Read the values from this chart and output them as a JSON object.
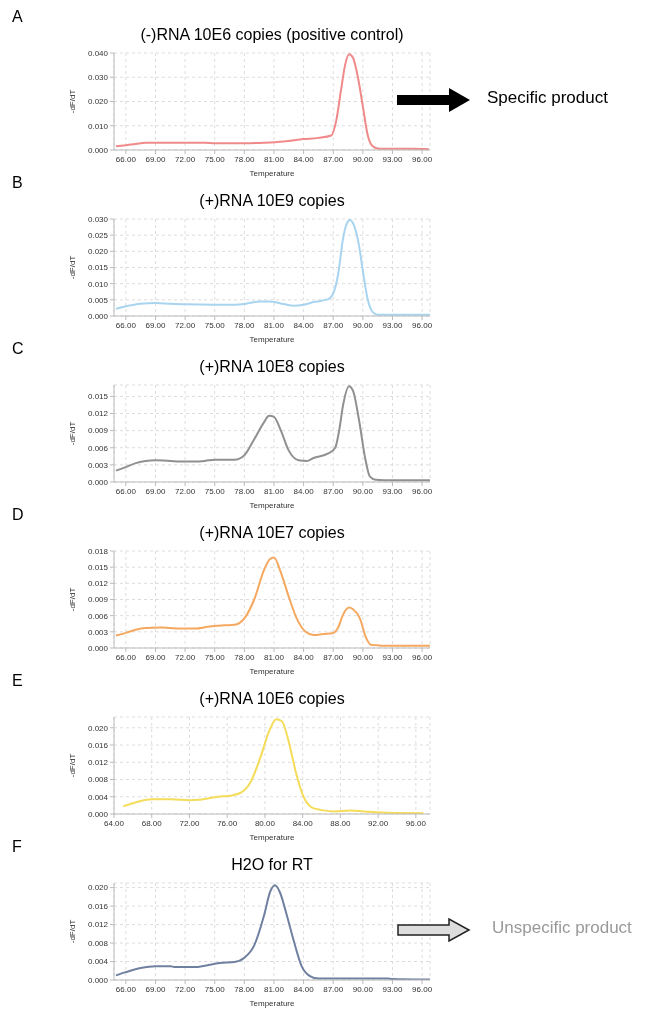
{
  "chart_data": [
    {
      "type": "line",
      "title": "(-)RNA 10E6 copies (positive control)",
      "xlabel": "Temperature",
      "ylabel": "-dF/dT",
      "annotations": [
        "A",
        "Specific product"
      ],
      "grid": true,
      "xlim": [
        64.8,
        96.8
      ],
      "xticks": [
        {
          "value": 66,
          "label": "66.00"
        },
        {
          "value": 69,
          "label": "69.00"
        },
        {
          "value": 72,
          "label": "72.00"
        },
        {
          "value": 75,
          "label": "75.00"
        },
        {
          "value": 78,
          "label": "78.00"
        },
        {
          "value": 81,
          "label": "81.00"
        },
        {
          "value": 84,
          "label": "84.00"
        },
        {
          "value": 87,
          "label": "87.00"
        },
        {
          "value": 90,
          "label": "90.00"
        },
        {
          "value": 93,
          "label": "93.00"
        },
        {
          "value": 96,
          "label": "96.00"
        }
      ],
      "ylim": [
        0,
        0.04
      ],
      "yticks": [
        {
          "value": 0,
          "label": "0.000"
        },
        {
          "value": 0.01,
          "label": "0.010"
        },
        {
          "value": 0.02,
          "label": "0.020"
        },
        {
          "value": 0.03,
          "label": "0.030"
        },
        {
          "value": 0.04,
          "label": "0.040"
        }
      ],
      "series": [
        {
          "color": "#f08a8a",
          "x": [
            65,
            66,
            67,
            68,
            70,
            72,
            74,
            75,
            78,
            80,
            82,
            84,
            85.5,
            86.8,
            87.3,
            87.8,
            88.2,
            88.6,
            89,
            89.5,
            90,
            90.5,
            91,
            91.5,
            92,
            95,
            96.7
          ],
          "values": [
            0.0015,
            0.002,
            0.0025,
            0.003,
            0.003,
            0.003,
            0.003,
            0.0028,
            0.0028,
            0.003,
            0.0035,
            0.0045,
            0.005,
            0.006,
            0.012,
            0.025,
            0.035,
            0.0395,
            0.038,
            0.03,
            0.018,
            0.006,
            0.0015,
            0.0006,
            0.0005,
            0.0005,
            0.0003
          ]
        }
      ]
    },
    {
      "type": "line",
      "title": "(+)RNA 10E9 copies",
      "xlabel": "Temperature",
      "ylabel": "-dF/dT",
      "annotations": [
        "B"
      ],
      "grid": true,
      "xlim": [
        64.8,
        96.8
      ],
      "xticks": [
        {
          "value": 66,
          "label": "66.00"
        },
        {
          "value": 69,
          "label": "69.00"
        },
        {
          "value": 72,
          "label": "72.00"
        },
        {
          "value": 75,
          "label": "75.00"
        },
        {
          "value": 78,
          "label": "78.00"
        },
        {
          "value": 81,
          "label": "81.00"
        },
        {
          "value": 84,
          "label": "84.00"
        },
        {
          "value": 87,
          "label": "87.00"
        },
        {
          "value": 90,
          "label": "90.00"
        },
        {
          "value": 93,
          "label": "93.00"
        },
        {
          "value": 96,
          "label": "96.00"
        }
      ],
      "ylim": [
        0,
        0.03
      ],
      "yticks": [
        {
          "value": 0,
          "label": "0.000"
        },
        {
          "value": 0.005,
          "label": "0.005"
        },
        {
          "value": 0.01,
          "label": "0.010"
        },
        {
          "value": 0.015,
          "label": "0.015"
        },
        {
          "value": 0.02,
          "label": "0.020"
        },
        {
          "value": 0.025,
          "label": "0.025"
        },
        {
          "value": 0.03,
          "label": "0.030"
        }
      ],
      "series": [
        {
          "color": "#a8d4f0",
          "x": [
            65,
            66,
            67.5,
            69,
            70.5,
            72,
            75,
            77,
            78,
            79.5,
            80.5,
            82,
            83,
            84,
            85,
            86.5,
            87,
            87.5,
            88,
            88.3,
            88.7,
            89.1,
            89.6,
            90,
            90.5,
            91,
            91.5,
            96.8
          ],
          "values": [
            0.0022,
            0.003,
            0.0038,
            0.004,
            0.0038,
            0.0036,
            0.0035,
            0.0035,
            0.0037,
            0.0045,
            0.0045,
            0.0037,
            0.0032,
            0.0035,
            0.0043,
            0.0052,
            0.007,
            0.013,
            0.024,
            0.028,
            0.0297,
            0.028,
            0.022,
            0.014,
            0.005,
            0.0012,
            0.0004,
            0.0004
          ]
        }
      ]
    },
    {
      "type": "line",
      "title": "(+)RNA 10E8 copies",
      "xlabel": "Temperature",
      "ylabel": "-dF/dT",
      "annotations": [
        "C"
      ],
      "grid": true,
      "xlim": [
        64.8,
        96.8
      ],
      "xticks": [
        {
          "value": 66,
          "label": "66.00"
        },
        {
          "value": 69,
          "label": "69.00"
        },
        {
          "value": 72,
          "label": "72.00"
        },
        {
          "value": 75,
          "label": "75.00"
        },
        {
          "value": 78,
          "label": "78.00"
        },
        {
          "value": 81,
          "label": "81.00"
        },
        {
          "value": 84,
          "label": "84.00"
        },
        {
          "value": 87,
          "label": "87.00"
        },
        {
          "value": 90,
          "label": "90.00"
        },
        {
          "value": 93,
          "label": "93.00"
        },
        {
          "value": 96,
          "label": "96.00"
        }
      ],
      "ylim": [
        0,
        0.017
      ],
      "yticks": [
        {
          "value": 0,
          "label": "0.000"
        },
        {
          "value": 0.003,
          "label": "0.003"
        },
        {
          "value": 0.006,
          "label": "0.006"
        },
        {
          "value": 0.009,
          "label": "0.009"
        },
        {
          "value": 0.012,
          "label": "0.012"
        },
        {
          "value": 0.015,
          "label": "0.015"
        }
      ],
      "series": [
        {
          "color": "#909090",
          "x": [
            65,
            66,
            67,
            68,
            69,
            70.5,
            71.5,
            73,
            74,
            75,
            76,
            77,
            78,
            79,
            80,
            80.5,
            81,
            81.7,
            82.5,
            83.5,
            84.3,
            85,
            86.5,
            87.2,
            87.6,
            88,
            88.6,
            89,
            89.6,
            90.2,
            90.7,
            91.3,
            93,
            96.8
          ],
          "values": [
            0.002,
            0.0026,
            0.0033,
            0.0037,
            0.0038,
            0.0037,
            0.0036,
            0.0036,
            0.0037,
            0.0039,
            0.0039,
            0.0039,
            0.0047,
            0.0075,
            0.0105,
            0.0116,
            0.0114,
            0.009,
            0.0055,
            0.0038,
            0.0037,
            0.0042,
            0.005,
            0.006,
            0.009,
            0.0135,
            0.0168,
            0.016,
            0.011,
            0.0045,
            0.001,
            0.0004,
            0.0003,
            0.0003
          ]
        }
      ]
    },
    {
      "type": "line",
      "title": "(+)RNA 10E7 copies",
      "xlabel": "Temperature",
      "ylabel": "-dF/dT",
      "annotations": [
        "D"
      ],
      "grid": true,
      "xlim": [
        64.8,
        96.8
      ],
      "xticks": [
        {
          "value": 66,
          "label": "66.00"
        },
        {
          "value": 69,
          "label": "69.00"
        },
        {
          "value": 72,
          "label": "72.00"
        },
        {
          "value": 75,
          "label": "75.00"
        },
        {
          "value": 78,
          "label": "78.00"
        },
        {
          "value": 81,
          "label": "81.00"
        },
        {
          "value": 84,
          "label": "84.00"
        },
        {
          "value": 87,
          "label": "87.00"
        },
        {
          "value": 90,
          "label": "90.00"
        },
        {
          "value": 93,
          "label": "93.00"
        },
        {
          "value": 96,
          "label": "96.00"
        }
      ],
      "ylim": [
        0,
        0.018
      ],
      "yticks": [
        {
          "value": 0,
          "label": "0.000"
        },
        {
          "value": 0.003,
          "label": "0.003"
        },
        {
          "value": 0.006,
          "label": "0.006"
        },
        {
          "value": 0.009,
          "label": "0.009"
        },
        {
          "value": 0.012,
          "label": "0.012"
        },
        {
          "value": 0.015,
          "label": "0.015"
        },
        {
          "value": 0.018,
          "label": "0.018"
        }
      ],
      "series": [
        {
          "color": "#f5a860",
          "x": [
            65,
            66,
            67,
            68,
            69.5,
            70.5,
            72,
            73,
            74.5,
            76,
            77,
            78,
            79,
            80,
            80.6,
            81,
            81.7,
            82.5,
            83.3,
            84.2,
            85,
            86,
            87,
            87.5,
            88,
            88.6,
            89,
            89.7,
            90.3,
            90.8,
            91.5,
            92,
            96.8
          ],
          "values": [
            0.0023,
            0.0028,
            0.0034,
            0.0037,
            0.0038,
            0.0037,
            0.0036,
            0.0036,
            0.004,
            0.0042,
            0.0043,
            0.0055,
            0.009,
            0.0145,
            0.0165,
            0.0168,
            0.014,
            0.0095,
            0.0055,
            0.003,
            0.0024,
            0.0026,
            0.0028,
            0.0038,
            0.0062,
            0.0075,
            0.0072,
            0.0055,
            0.002,
            0.0006,
            0.0005,
            0.0004,
            0.0004
          ]
        }
      ]
    },
    {
      "type": "line",
      "title": "(+)RNA 10E6 copies",
      "xlabel": "Temperature",
      "ylabel": "-dF/dT",
      "annotations": [
        "E"
      ],
      "grid": true,
      "xlim": [
        64,
        97.5
      ],
      "xticks": [
        {
          "value": 64,
          "label": "64.00"
        },
        {
          "value": 68,
          "label": "68.00"
        },
        {
          "value": 72,
          "label": "72.00"
        },
        {
          "value": 76,
          "label": "76.00"
        },
        {
          "value": 80,
          "label": "80.00"
        },
        {
          "value": 84,
          "label": "84.00"
        },
        {
          "value": 88,
          "label": "88.00"
        },
        {
          "value": 92,
          "label": "92.00"
        },
        {
          "value": 96,
          "label": "96.00"
        }
      ],
      "ylim": [
        0,
        0.0225
      ],
      "yticks": [
        {
          "value": 0,
          "label": "0.000"
        },
        {
          "value": 0.004,
          "label": "0.004"
        },
        {
          "value": 0.008,
          "label": "0.008"
        },
        {
          "value": 0.012,
          "label": "0.012"
        },
        {
          "value": 0.016,
          "label": "0.016"
        },
        {
          "value": 0.02,
          "label": "0.020"
        }
      ],
      "series": [
        {
          "color": "#f5dc5a",
          "x": [
            65,
            66,
            68,
            70,
            72,
            73,
            75,
            76.5,
            77.5,
            78.5,
            79.5,
            80.5,
            81.2,
            81.8,
            82.5,
            83.3,
            84,
            85,
            86,
            87.5,
            89,
            90,
            91,
            93,
            96.8
          ],
          "values": [
            0.0018,
            0.0025,
            0.0034,
            0.0034,
            0.0032,
            0.0033,
            0.004,
            0.0043,
            0.005,
            0.0075,
            0.013,
            0.0195,
            0.022,
            0.0215,
            0.017,
            0.0095,
            0.0045,
            0.0015,
            0.0009,
            0.0006,
            0.0008,
            0.0007,
            0.0005,
            0.0003,
            0.0002
          ]
        }
      ]
    },
    {
      "type": "line",
      "title": "H2O for RT",
      "xlabel": "Temperature",
      "ylabel": "-dF/dT",
      "annotations": [
        "F",
        "Unspecific product"
      ],
      "grid": true,
      "xlim": [
        64.8,
        96.8
      ],
      "xticks": [
        {
          "value": 66,
          "label": "66.00"
        },
        {
          "value": 69,
          "label": "69.00"
        },
        {
          "value": 72,
          "label": "72.00"
        },
        {
          "value": 75,
          "label": "75.00"
        },
        {
          "value": 78,
          "label": "78.00"
        },
        {
          "value": 81,
          "label": "81.00"
        },
        {
          "value": 84,
          "label": "84.00"
        },
        {
          "value": 87,
          "label": "87.00"
        },
        {
          "value": 90,
          "label": "90.00"
        },
        {
          "value": 93,
          "label": "93.00"
        },
        {
          "value": 96,
          "label": "96.00"
        }
      ],
      "ylim": [
        0,
        0.021
      ],
      "yticks": [
        {
          "value": 0,
          "label": "0.000"
        },
        {
          "value": 0.004,
          "label": "0.004"
        },
        {
          "value": 0.008,
          "label": "0.008"
        },
        {
          "value": 0.012,
          "label": "0.012"
        },
        {
          "value": 0.016,
          "label": "0.016"
        },
        {
          "value": 0.02,
          "label": "0.020"
        }
      ],
      "series": [
        {
          "color": "#7080a0",
          "x": [
            65,
            66,
            67.5,
            69,
            70.5,
            71,
            73,
            74,
            75.5,
            77,
            78,
            79,
            80,
            80.6,
            81.1,
            81.6,
            82.3,
            83,
            83.8,
            84.6,
            85.5,
            87,
            92.5,
            93,
            96.8
          ],
          "values": [
            0.001,
            0.0017,
            0.0026,
            0.003,
            0.003,
            0.0028,
            0.0028,
            0.0031,
            0.0037,
            0.0039,
            0.0048,
            0.0075,
            0.014,
            0.019,
            0.0205,
            0.019,
            0.014,
            0.0085,
            0.003,
            0.0009,
            0.0003,
            0.0003,
            0.0003,
            0.0002,
            0.0001
          ]
        }
      ]
    }
  ]
}
